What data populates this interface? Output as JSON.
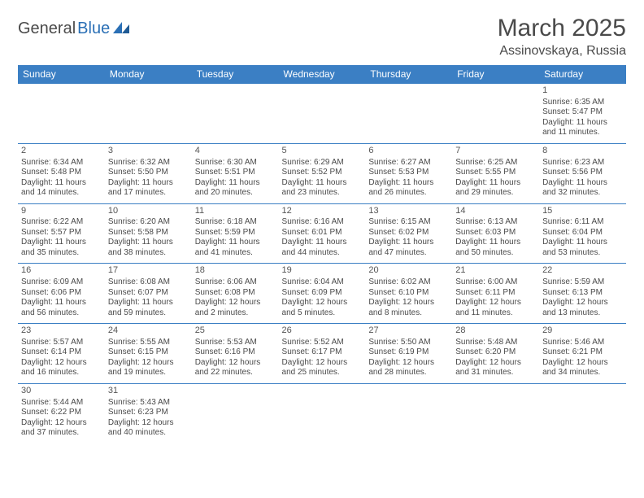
{
  "logo": {
    "general": "General",
    "blue": "Blue"
  },
  "title": "March 2025",
  "location": "Assinovskaya, Russia",
  "colors": {
    "header_bg": "#3b7fc4",
    "header_text": "#ffffff",
    "border": "#3b7fc4",
    "body_text": "#4a4a4a",
    "logo_blue": "#2a6fb5"
  },
  "weekdays": [
    "Sunday",
    "Monday",
    "Tuesday",
    "Wednesday",
    "Thursday",
    "Friday",
    "Saturday"
  ],
  "grid": {
    "first_weekday_index": 6,
    "days": [
      {
        "n": 1,
        "sunrise": "6:35 AM",
        "sunset": "5:47 PM",
        "daylight": "11 hours and 11 minutes."
      },
      {
        "n": 2,
        "sunrise": "6:34 AM",
        "sunset": "5:48 PM",
        "daylight": "11 hours and 14 minutes."
      },
      {
        "n": 3,
        "sunrise": "6:32 AM",
        "sunset": "5:50 PM",
        "daylight": "11 hours and 17 minutes."
      },
      {
        "n": 4,
        "sunrise": "6:30 AM",
        "sunset": "5:51 PM",
        "daylight": "11 hours and 20 minutes."
      },
      {
        "n": 5,
        "sunrise": "6:29 AM",
        "sunset": "5:52 PM",
        "daylight": "11 hours and 23 minutes."
      },
      {
        "n": 6,
        "sunrise": "6:27 AM",
        "sunset": "5:53 PM",
        "daylight": "11 hours and 26 minutes."
      },
      {
        "n": 7,
        "sunrise": "6:25 AM",
        "sunset": "5:55 PM",
        "daylight": "11 hours and 29 minutes."
      },
      {
        "n": 8,
        "sunrise": "6:23 AM",
        "sunset": "5:56 PM",
        "daylight": "11 hours and 32 minutes."
      },
      {
        "n": 9,
        "sunrise": "6:22 AM",
        "sunset": "5:57 PM",
        "daylight": "11 hours and 35 minutes."
      },
      {
        "n": 10,
        "sunrise": "6:20 AM",
        "sunset": "5:58 PM",
        "daylight": "11 hours and 38 minutes."
      },
      {
        "n": 11,
        "sunrise": "6:18 AM",
        "sunset": "5:59 PM",
        "daylight": "11 hours and 41 minutes."
      },
      {
        "n": 12,
        "sunrise": "6:16 AM",
        "sunset": "6:01 PM",
        "daylight": "11 hours and 44 minutes."
      },
      {
        "n": 13,
        "sunrise": "6:15 AM",
        "sunset": "6:02 PM",
        "daylight": "11 hours and 47 minutes."
      },
      {
        "n": 14,
        "sunrise": "6:13 AM",
        "sunset": "6:03 PM",
        "daylight": "11 hours and 50 minutes."
      },
      {
        "n": 15,
        "sunrise": "6:11 AM",
        "sunset": "6:04 PM",
        "daylight": "11 hours and 53 minutes."
      },
      {
        "n": 16,
        "sunrise": "6:09 AM",
        "sunset": "6:06 PM",
        "daylight": "11 hours and 56 minutes."
      },
      {
        "n": 17,
        "sunrise": "6:08 AM",
        "sunset": "6:07 PM",
        "daylight": "11 hours and 59 minutes."
      },
      {
        "n": 18,
        "sunrise": "6:06 AM",
        "sunset": "6:08 PM",
        "daylight": "12 hours and 2 minutes."
      },
      {
        "n": 19,
        "sunrise": "6:04 AM",
        "sunset": "6:09 PM",
        "daylight": "12 hours and 5 minutes."
      },
      {
        "n": 20,
        "sunrise": "6:02 AM",
        "sunset": "6:10 PM",
        "daylight": "12 hours and 8 minutes."
      },
      {
        "n": 21,
        "sunrise": "6:00 AM",
        "sunset": "6:11 PM",
        "daylight": "12 hours and 11 minutes."
      },
      {
        "n": 22,
        "sunrise": "5:59 AM",
        "sunset": "6:13 PM",
        "daylight": "12 hours and 13 minutes."
      },
      {
        "n": 23,
        "sunrise": "5:57 AM",
        "sunset": "6:14 PM",
        "daylight": "12 hours and 16 minutes."
      },
      {
        "n": 24,
        "sunrise": "5:55 AM",
        "sunset": "6:15 PM",
        "daylight": "12 hours and 19 minutes."
      },
      {
        "n": 25,
        "sunrise": "5:53 AM",
        "sunset": "6:16 PM",
        "daylight": "12 hours and 22 minutes."
      },
      {
        "n": 26,
        "sunrise": "5:52 AM",
        "sunset": "6:17 PM",
        "daylight": "12 hours and 25 minutes."
      },
      {
        "n": 27,
        "sunrise": "5:50 AM",
        "sunset": "6:19 PM",
        "daylight": "12 hours and 28 minutes."
      },
      {
        "n": 28,
        "sunrise": "5:48 AM",
        "sunset": "6:20 PM",
        "daylight": "12 hours and 31 minutes."
      },
      {
        "n": 29,
        "sunrise": "5:46 AM",
        "sunset": "6:21 PM",
        "daylight": "12 hours and 34 minutes."
      },
      {
        "n": 30,
        "sunrise": "5:44 AM",
        "sunset": "6:22 PM",
        "daylight": "12 hours and 37 minutes."
      },
      {
        "n": 31,
        "sunrise": "5:43 AM",
        "sunset": "6:23 PM",
        "daylight": "12 hours and 40 minutes."
      }
    ]
  },
  "labels": {
    "sunrise_prefix": "Sunrise: ",
    "sunset_prefix": "Sunset: ",
    "daylight_prefix": "Daylight: "
  }
}
